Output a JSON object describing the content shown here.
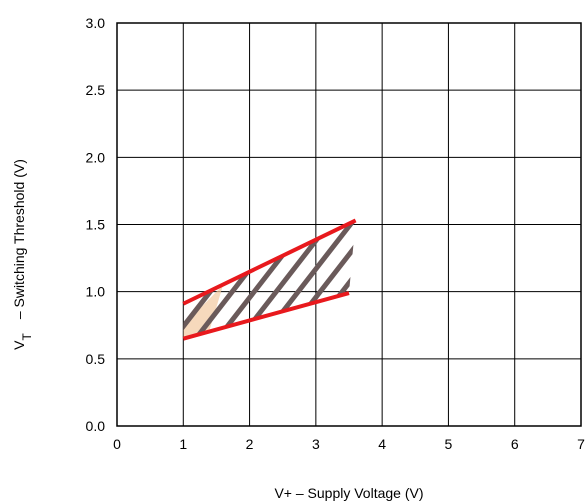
{
  "chart_data": {
    "type": "line",
    "xlabel": "V+ – Supply Voltage (V)",
    "ylabel_symbol": "V",
    "ylabel_subscript": "T",
    "ylabel_text": "– Switching Threshold (V)",
    "xlim": [
      0,
      7
    ],
    "ylim": [
      0,
      3
    ],
    "x_ticks": [
      "0",
      "1",
      "2",
      "3",
      "4",
      "5",
      "6",
      "7"
    ],
    "y_ticks": [
      "0.0",
      "0.5",
      "1.0",
      "1.5",
      "2.0",
      "2.5",
      "3.0"
    ],
    "grid": true,
    "series": [
      {
        "x": [
          1.0,
          3.6
        ],
        "y": [
          0.91,
          1.53
        ],
        "color": "#e8191d"
      },
      {
        "x": [
          1.0,
          3.5
        ],
        "y": [
          0.65,
          0.99
        ],
        "color": "#e8191d"
      }
    ],
    "hatch_color": "#6a5a5a",
    "hatch_tint": "#f2c9a0"
  }
}
